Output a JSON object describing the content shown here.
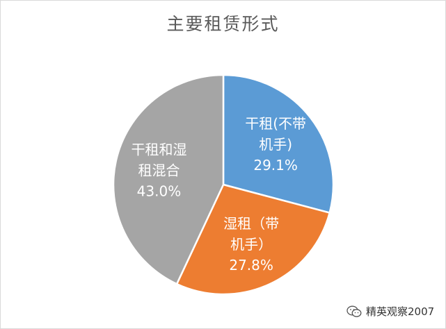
{
  "chart_data": {
    "type": "pie",
    "title": "主要租赁形式",
    "slices": [
      {
        "label_lines": [
          "干租(不带",
          "机手)"
        ],
        "value": 29.1,
        "value_label": "29.1%",
        "color": "#5b9bd5"
      },
      {
        "label_lines": [
          "湿租（带",
          "机手）"
        ],
        "value": 27.8,
        "value_label": "27.8%",
        "color": "#ed7d31"
      },
      {
        "label_lines": [
          "干租和湿",
          "租混合"
        ],
        "value": 43.0,
        "value_label": "43.0%",
        "color": "#a5a5a5"
      }
    ],
    "legend": "none"
  },
  "watermark": {
    "text": "精英观察2007",
    "icon": "wechat-icon"
  }
}
